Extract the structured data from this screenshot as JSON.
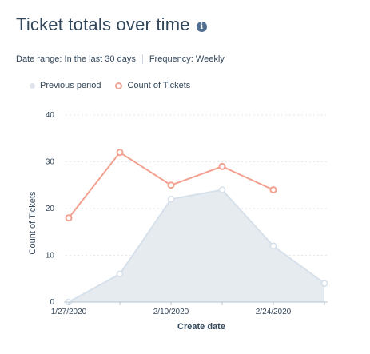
{
  "header": {
    "title": "Ticket totals over time",
    "info_icon": "info-icon"
  },
  "meta": {
    "date_range": "Date range: In the last 30 days",
    "frequency": "Frequency: Weekly"
  },
  "colors": {
    "previous_fill": "#e6ebf0",
    "previous_stroke": "#d6e0ea",
    "current_line": "#f2a190",
    "grid": "#e2e8ee",
    "axis": "#b7c4d2"
  },
  "chart_data": {
    "type": "line",
    "title": "Ticket totals over time",
    "xlabel": "Create date",
    "ylabel": "Count of Tickets",
    "ylim": [
      0,
      40
    ],
    "yticks": [
      0,
      10,
      20,
      30,
      40
    ],
    "x": [
      "1/27/2020",
      "2/3/2020",
      "2/10/2020",
      "2/17/2020",
      "2/24/2020",
      "3/2/2020"
    ],
    "xtick_labels": [
      "1/27/2020",
      "2/10/2020",
      "2/24/2020"
    ],
    "legend": "top-left",
    "grid": true,
    "series": [
      {
        "name": "Previous period",
        "style": "area",
        "values": [
          0,
          6,
          22,
          24,
          12,
          4
        ]
      },
      {
        "name": "Count of Tickets",
        "style": "line",
        "values": [
          18,
          32,
          25,
          29,
          24,
          null
        ]
      }
    ]
  }
}
